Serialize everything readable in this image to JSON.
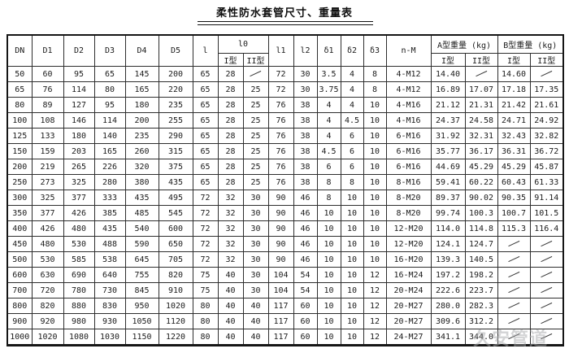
{
  "page": {
    "title": "柔性防水套管尺寸、重量表",
    "watermark": "久安管道"
  },
  "table": {
    "headers": {
      "dn": "DN",
      "d1": "D1",
      "d2": "D2",
      "d3": "D3",
      "d4": "D4",
      "d5": "D5",
      "l": "l",
      "l0": "l0",
      "l1": "l1",
      "l2": "l2",
      "delta1": "δ1",
      "delta2": "δ2",
      "delta3": "δ3",
      "n_m": "n-M",
      "weight_a": "A型重量 (kg)",
      "weight_b": "B型重量 (kg)",
      "type1": "I型",
      "type2": "II型"
    },
    "rows": [
      [
        "50",
        "60",
        "95",
        "65",
        "145",
        "200",
        "65",
        "28",
        "/",
        "72",
        "30",
        "3.5",
        "4",
        "8",
        "4-M12",
        "14.40",
        "/",
        "14.60",
        "/"
      ],
      [
        "65",
        "76",
        "114",
        "80",
        "165",
        "220",
        "65",
        "28",
        "25",
        "72",
        "30",
        "3.75",
        "4",
        "8",
        "4-M12",
        "16.89",
        "17.07",
        "17.18",
        "17.35"
      ],
      [
        "80",
        "89",
        "127",
        "95",
        "180",
        "235",
        "65",
        "28",
        "25",
        "76",
        "38",
        "4",
        "4",
        "10",
        "4-M16",
        "21.12",
        "21.31",
        "21.42",
        "21.61"
      ],
      [
        "100",
        "108",
        "146",
        "114",
        "200",
        "255",
        "65",
        "28",
        "25",
        "76",
        "38",
        "4",
        "4.5",
        "10",
        "4-M16",
        "24.37",
        "24.58",
        "24.71",
        "24.92"
      ],
      [
        "125",
        "133",
        "180",
        "140",
        "235",
        "290",
        "65",
        "28",
        "25",
        "76",
        "38",
        "4",
        "6",
        "10",
        "6-M16",
        "31.92",
        "32.31",
        "32.43",
        "32.82"
      ],
      [
        "150",
        "159",
        "203",
        "165",
        "260",
        "315",
        "65",
        "28",
        "25",
        "76",
        "38",
        "4.5",
        "6",
        "10",
        "6-M16",
        "35.77",
        "36.17",
        "36.31",
        "36.72"
      ],
      [
        "200",
        "219",
        "265",
        "226",
        "320",
        "375",
        "65",
        "28",
        "25",
        "76",
        "38",
        "6",
        "6",
        "10",
        "6-M16",
        "44.69",
        "45.29",
        "45.29",
        "45.87"
      ],
      [
        "250",
        "273",
        "325",
        "280",
        "380",
        "435",
        "65",
        "28",
        "25",
        "76",
        "38",
        "8",
        "8",
        "10",
        "8-M16",
        "59.41",
        "60.22",
        "60.43",
        "61.33"
      ],
      [
        "300",
        "325",
        "377",
        "333",
        "435",
        "495",
        "72",
        "32",
        "30",
        "90",
        "46",
        "8",
        "10",
        "10",
        "8-M20",
        "89.37",
        "90.02",
        "90.35",
        "91.14"
      ],
      [
        "350",
        "377",
        "426",
        "385",
        "485",
        "545",
        "72",
        "32",
        "30",
        "90",
        "46",
        "10",
        "10",
        "10",
        "8-M20",
        "99.74",
        "100.3",
        "100.7",
        "101.5"
      ],
      [
        "400",
        "426",
        "480",
        "435",
        "540",
        "600",
        "72",
        "32",
        "30",
        "90",
        "46",
        "10",
        "10",
        "10",
        "12-M20",
        "114.0",
        "114.8",
        "115.3",
        "116.4"
      ],
      [
        "450",
        "480",
        "530",
        "488",
        "590",
        "650",
        "72",
        "32",
        "30",
        "90",
        "46",
        "10",
        "10",
        "10",
        "12-M20",
        "124.1",
        "124.7",
        "/",
        "/"
      ],
      [
        "500",
        "530",
        "585",
        "538",
        "645",
        "705",
        "72",
        "32",
        "30",
        "90",
        "46",
        "10",
        "10",
        "10",
        "16-M20",
        "139.3",
        "140.5",
        "/",
        "/"
      ],
      [
        "600",
        "630",
        "690",
        "640",
        "755",
        "820",
        "75",
        "40",
        "30",
        "104",
        "54",
        "10",
        "10",
        "12",
        "16-M24",
        "197.2",
        "198.2",
        "/",
        "/"
      ],
      [
        "700",
        "720",
        "780",
        "730",
        "845",
        "910",
        "75",
        "40",
        "30",
        "104",
        "54",
        "10",
        "10",
        "12",
        "20-M24",
        "222.6",
        "223.7",
        "/",
        "/"
      ],
      [
        "800",
        "820",
        "880",
        "830",
        "950",
        "1020",
        "80",
        "40",
        "40",
        "117",
        "60",
        "10",
        "10",
        "12",
        "20-M27",
        "280.0",
        "282.3",
        "/",
        "/"
      ],
      [
        "900",
        "920",
        "980",
        "930",
        "1050",
        "1120",
        "80",
        "40",
        "40",
        "117",
        "60",
        "10",
        "10",
        "12",
        "20-M27",
        "309.6",
        "312.2",
        "/",
        "/"
      ],
      [
        "1000",
        "1020",
        "1080",
        "1030",
        "1150",
        "1220",
        "80",
        "40",
        "40",
        "117",
        "60",
        "10",
        "10",
        "12",
        "24-M27",
        "341.1",
        "344.0",
        "/",
        "/"
      ]
    ]
  }
}
